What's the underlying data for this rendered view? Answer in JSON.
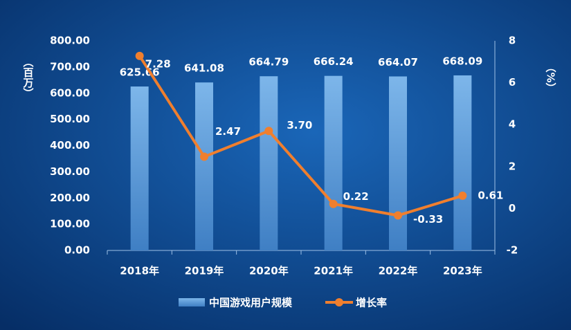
{
  "chart_data": {
    "type": "bar_line",
    "categories": [
      "2018年",
      "2019年",
      "2020年",
      "2021年",
      "2022年",
      "2023年"
    ],
    "series": [
      {
        "name": "中国游戏用户规模",
        "type": "bar",
        "color": "#6aa6e0",
        "values": [
          625.66,
          641.08,
          664.79,
          666.24,
          664.07,
          668.09
        ]
      },
      {
        "name": "增长率",
        "type": "line",
        "axis": "y2",
        "color": "#f07f2e",
        "values": [
          7.28,
          2.47,
          3.7,
          0.22,
          -0.33,
          0.61
        ],
        "value_labels": [
          "7.28",
          "2.47",
          "3.70",
          "0.22",
          "-0.33",
          "0.61"
        ]
      }
    ],
    "y_label": "（百万）",
    "y2_label": "（%）",
    "ylim": [
      0,
      800
    ],
    "yticks": [
      {
        "value": 0,
        "label": "0.00"
      },
      {
        "value": 100,
        "label": "100.00"
      },
      {
        "value": 200,
        "label": "200.00"
      },
      {
        "value": 300,
        "label": "300.00"
      },
      {
        "value": 400,
        "label": "400.00"
      },
      {
        "value": 500,
        "label": "500.00"
      },
      {
        "value": 600,
        "label": "600.00"
      },
      {
        "value": 700,
        "label": "700.00"
      },
      {
        "value": 800,
        "label": "800.00"
      }
    ],
    "y2lim": [
      -2,
      8
    ],
    "y2ticks": [
      -2,
      0,
      2,
      4,
      6,
      8
    ],
    "legend": "bottom"
  }
}
